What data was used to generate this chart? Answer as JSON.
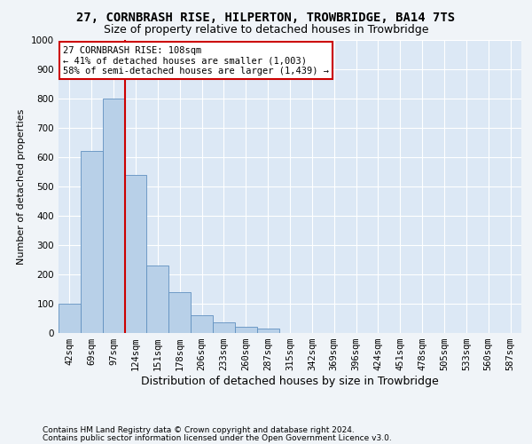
{
  "title": "27, CORNBRASH RISE, HILPERTON, TROWBRIDGE, BA14 7TS",
  "subtitle": "Size of property relative to detached houses in Trowbridge",
  "xlabel": "Distribution of detached houses by size in Trowbridge",
  "ylabel": "Number of detached properties",
  "footnote1": "Contains HM Land Registry data © Crown copyright and database right 2024.",
  "footnote2": "Contains public sector information licensed under the Open Government Licence v3.0.",
  "annotation_line1": "27 CORNBRASH RISE: 108sqm",
  "annotation_line2": "← 41% of detached houses are smaller (1,003)",
  "annotation_line3": "58% of semi-detached houses are larger (1,439) →",
  "bar_labels": [
    "42sqm",
    "69sqm",
    "97sqm",
    "124sqm",
    "151sqm",
    "178sqm",
    "206sqm",
    "233sqm",
    "260sqm",
    "287sqm",
    "315sqm",
    "342sqm",
    "369sqm",
    "396sqm",
    "424sqm",
    "451sqm",
    "478sqm",
    "505sqm",
    "533sqm",
    "560sqm",
    "587sqm"
  ],
  "bar_values": [
    100,
    620,
    800,
    540,
    230,
    140,
    60,
    35,
    20,
    15,
    0,
    0,
    0,
    0,
    0,
    0,
    0,
    0,
    0,
    0,
    0
  ],
  "bar_color": "#b8d0e8",
  "bar_edge_color": "#6090c0",
  "red_line_x": 2.5,
  "ylim": [
    0,
    1000
  ],
  "yticks": [
    0,
    100,
    200,
    300,
    400,
    500,
    600,
    700,
    800,
    900,
    1000
  ],
  "bg_color": "#dce8f5",
  "grid_color": "#ffffff",
  "fig_bg_color": "#f0f4f8",
  "annotation_box_facecolor": "#ffffff",
  "annotation_box_edgecolor": "#cc0000",
  "red_line_color": "#cc0000",
  "title_fontsize": 10,
  "subtitle_fontsize": 9,
  "ylabel_fontsize": 8,
  "xlabel_fontsize": 9,
  "tick_fontsize": 7.5,
  "annotation_fontsize": 7.5,
  "footnote_fontsize": 6.5
}
